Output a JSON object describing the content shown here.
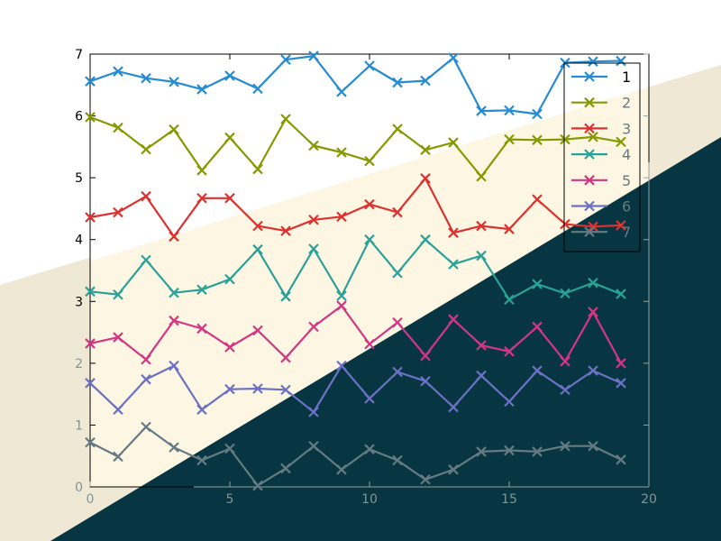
{
  "chart_data": {
    "type": "line",
    "title": "",
    "xlabel": "",
    "ylabel": "",
    "xlim": [
      0,
      20
    ],
    "ylim": [
      0,
      7
    ],
    "xticks": [
      "0",
      "5",
      "10",
      "15",
      "20"
    ],
    "yticks": [
      "0",
      "1",
      "2",
      "3",
      "4",
      "5",
      "6",
      "7"
    ],
    "grid": false,
    "legend_position": "top-right",
    "marker": "x",
    "x": [
      0,
      1,
      2,
      3,
      4,
      5,
      6,
      7,
      8,
      9,
      10,
      11,
      12,
      13,
      14,
      15,
      16,
      17,
      18,
      19
    ],
    "series": [
      {
        "name": "1",
        "color": "#268bd2",
        "values": [
          6.56,
          6.72,
          6.61,
          6.55,
          6.43,
          6.65,
          6.44,
          6.91,
          6.97,
          6.39,
          6.81,
          6.54,
          6.57,
          6.94,
          6.08,
          6.09,
          6.03,
          6.86,
          6.88,
          6.89
        ]
      },
      {
        "name": "2",
        "color": "#859900",
        "values": [
          5.98,
          5.81,
          5.46,
          5.78,
          5.12,
          5.65,
          5.14,
          5.95,
          5.52,
          5.41,
          5.27,
          5.79,
          5.45,
          5.57,
          5.02,
          5.62,
          5.61,
          5.62,
          5.66,
          5.58
        ]
      },
      {
        "name": "3",
        "color": "#dc322f",
        "values": [
          4.36,
          4.44,
          4.7,
          4.05,
          4.67,
          4.67,
          4.22,
          4.14,
          4.32,
          4.37,
          4.57,
          4.44,
          4.99,
          4.11,
          4.22,
          4.17,
          4.65,
          4.25,
          4.21,
          4.23
        ]
      },
      {
        "name": "4",
        "color": "#2aa198",
        "values": [
          3.16,
          3.11,
          3.67,
          3.14,
          3.19,
          3.36,
          3.84,
          3.08,
          3.85,
          3.09,
          4.0,
          3.46,
          4.0,
          3.6,
          3.74,
          3.03,
          3.28,
          3.13,
          3.3,
          3.12
        ]
      },
      {
        "name": "5",
        "color": "#d33682",
        "values": [
          2.32,
          2.42,
          2.06,
          2.69,
          2.56,
          2.26,
          2.53,
          2.09,
          2.59,
          2.93,
          2.31,
          2.66,
          2.12,
          2.71,
          2.29,
          2.19,
          2.59,
          2.03,
          2.83,
          2.0
        ]
      },
      {
        "name": "6",
        "color": "#6c71c4",
        "values": [
          1.68,
          1.25,
          1.74,
          1.96,
          1.25,
          1.58,
          1.59,
          1.57,
          1.21,
          1.96,
          1.43,
          1.86,
          1.71,
          1.29,
          1.8,
          1.38,
          1.88,
          1.57,
          1.88,
          1.68
        ]
      },
      {
        "name": "7",
        "color": "#657b83",
        "values": [
          0.72,
          0.49,
          0.97,
          0.64,
          0.43,
          0.62,
          0.02,
          0.3,
          0.66,
          0.28,
          0.61,
          0.43,
          0.12,
          0.28,
          0.57,
          0.59,
          0.57,
          0.66,
          0.66,
          0.44
        ]
      }
    ]
  }
}
